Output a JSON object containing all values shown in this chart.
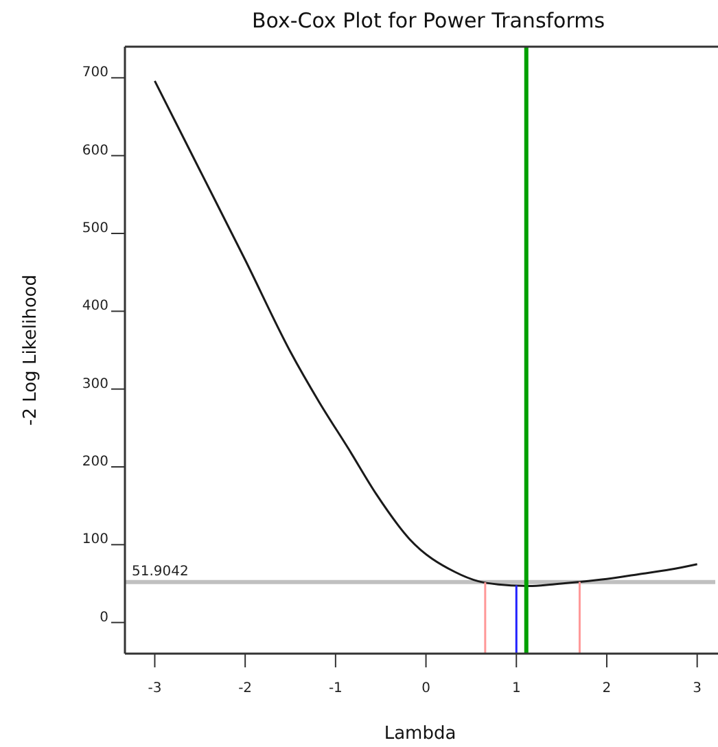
{
  "chart_data": {
    "type": "line",
    "title": "Box-Cox Plot for Power Transforms",
    "xlabel": "Lambda",
    "ylabel": "-2 Log Likelihood",
    "x": [
      -3,
      -2.5,
      -2,
      -1.5,
      -1.18,
      -0.85,
      -0.55,
      -0.18,
      0.32,
      0.58,
      0.8,
      1.14,
      1.4,
      1.68,
      2.0,
      2.35,
      2.7,
      3
    ],
    "series": [
      {
        "color": "#1a1a1a",
        "values": [
          696,
          581,
          466,
          348,
          283,
          222,
          165,
          107,
          65,
          53,
          49,
          47,
          49,
          52,
          56,
          62,
          68,
          75
        ]
      }
    ],
    "xlim": [
      -3.33,
      3.2
    ],
    "xticks": [
      -3,
      -2,
      -1,
      0,
      1,
      2,
      3
    ],
    "ylim": [
      -40,
      740
    ],
    "yticks": [
      0,
      100,
      200,
      300,
      400,
      500,
      600,
      700
    ],
    "ref_lines": [
      {
        "axis": "x",
        "value": 1.11,
        "color": "#00a000"
      },
      {
        "axis": "x",
        "value": 0.655,
        "color": "#ff9999"
      },
      {
        "axis": "x",
        "value": 1.0,
        "color": "#2020ff"
      },
      {
        "axis": "x",
        "value": 1.7,
        "color": "#ff9999"
      },
      {
        "axis": "y",
        "value": 51.9042,
        "label": "51.9042",
        "color": "#c0c0c0"
      }
    ],
    "grid": false,
    "marker": "none",
    "line_style": "solid"
  }
}
